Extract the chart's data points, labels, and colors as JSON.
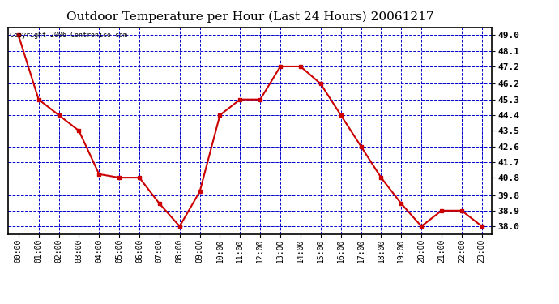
{
  "title": "Outdoor Temperature per Hour (Last 24 Hours) 20061217",
  "copyright": "Copyright 2006 Contronico.com",
  "hours": [
    "00:00",
    "01:00",
    "02:00",
    "03:00",
    "04:00",
    "05:00",
    "06:00",
    "07:00",
    "08:00",
    "09:00",
    "10:00",
    "11:00",
    "12:00",
    "13:00",
    "14:00",
    "15:00",
    "16:00",
    "17:00",
    "18:00",
    "19:00",
    "20:00",
    "21:00",
    "22:00",
    "23:00"
  ],
  "temperatures": [
    49.0,
    45.3,
    44.4,
    43.5,
    41.0,
    40.8,
    40.8,
    39.3,
    38.0,
    40.0,
    44.4,
    45.3,
    45.3,
    47.2,
    47.2,
    46.2,
    44.4,
    42.6,
    40.8,
    39.3,
    38.0,
    38.9,
    38.9,
    38.0
  ],
  "line_color": "#cc0000",
  "marker_color": "#cc0000",
  "bg_color": "#ffffff",
  "plot_bg_color": "#ffffff",
  "grid_color": "#0000cc",
  "border_color": "#000000",
  "title_color": "#000000",
  "ylim_min": 37.55,
  "ylim_max": 49.45,
  "yticks": [
    38.0,
    38.9,
    39.8,
    40.8,
    41.7,
    42.6,
    43.5,
    44.4,
    45.3,
    46.2,
    47.2,
    48.1,
    49.0
  ]
}
